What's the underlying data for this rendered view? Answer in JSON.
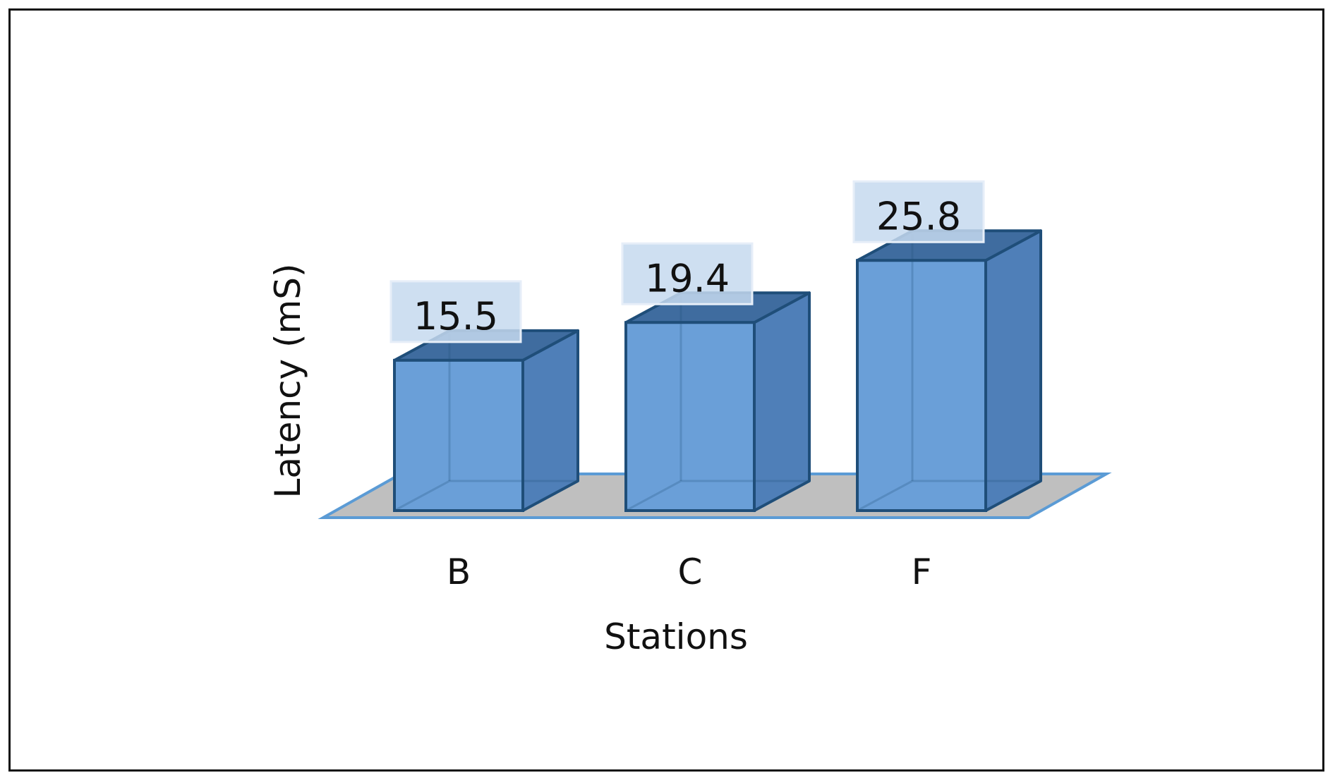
{
  "chart_data": {
    "type": "bar",
    "categories": [
      "B",
      "C",
      "F"
    ],
    "values": [
      15.5,
      19.4,
      25.8
    ],
    "data_labels": [
      "15.5",
      "19.4",
      "25.8"
    ],
    "title": "",
    "xlabel": "Stations",
    "ylabel": "Latency (mS)",
    "ylim": [
      0,
      30
    ],
    "grid": false,
    "legend": "none",
    "style": "3d-clustered-column",
    "colors": {
      "bar_front": "#6a9fd8",
      "bar_side": "#4f7fb8",
      "bar_top": "#3f6c9f",
      "bar_edge": "#1f4e79",
      "floor": "#bfbfbf",
      "floor_edge": "#5b9bd5",
      "label_box": "#c6d9ef"
    }
  }
}
